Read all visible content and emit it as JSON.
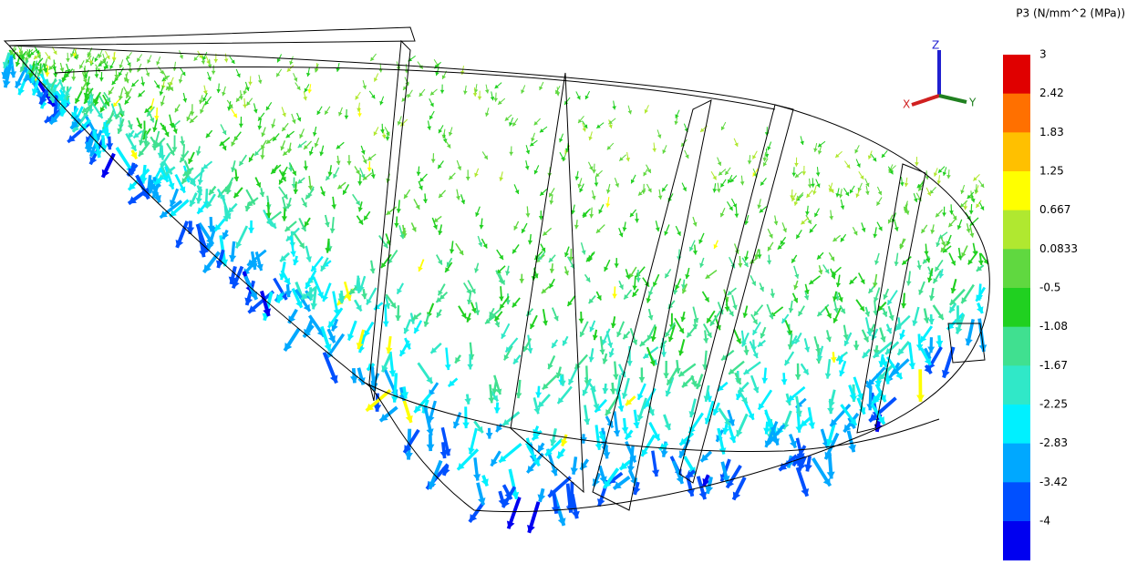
{
  "legend": {
    "title": "P3 (N/mm^2 (MPa))",
    "levels": [
      3,
      2.42,
      1.83,
      1.25,
      0.667,
      0.0833,
      -0.5,
      -1.08,
      -1.67,
      -2.25,
      -2.83,
      -3.42,
      -4
    ],
    "colors": [
      "#e00000",
      "#ff7000",
      "#ffc000",
      "#ffff00",
      "#b0e830",
      "#60d840",
      "#20d020",
      "#40e090",
      "#30e8c8",
      "#00f0ff",
      "#00a8ff",
      "#0050ff",
      "#0000f0"
    ]
  },
  "triad": {
    "z": "Z",
    "x": "X",
    "y": "Y"
  }
}
